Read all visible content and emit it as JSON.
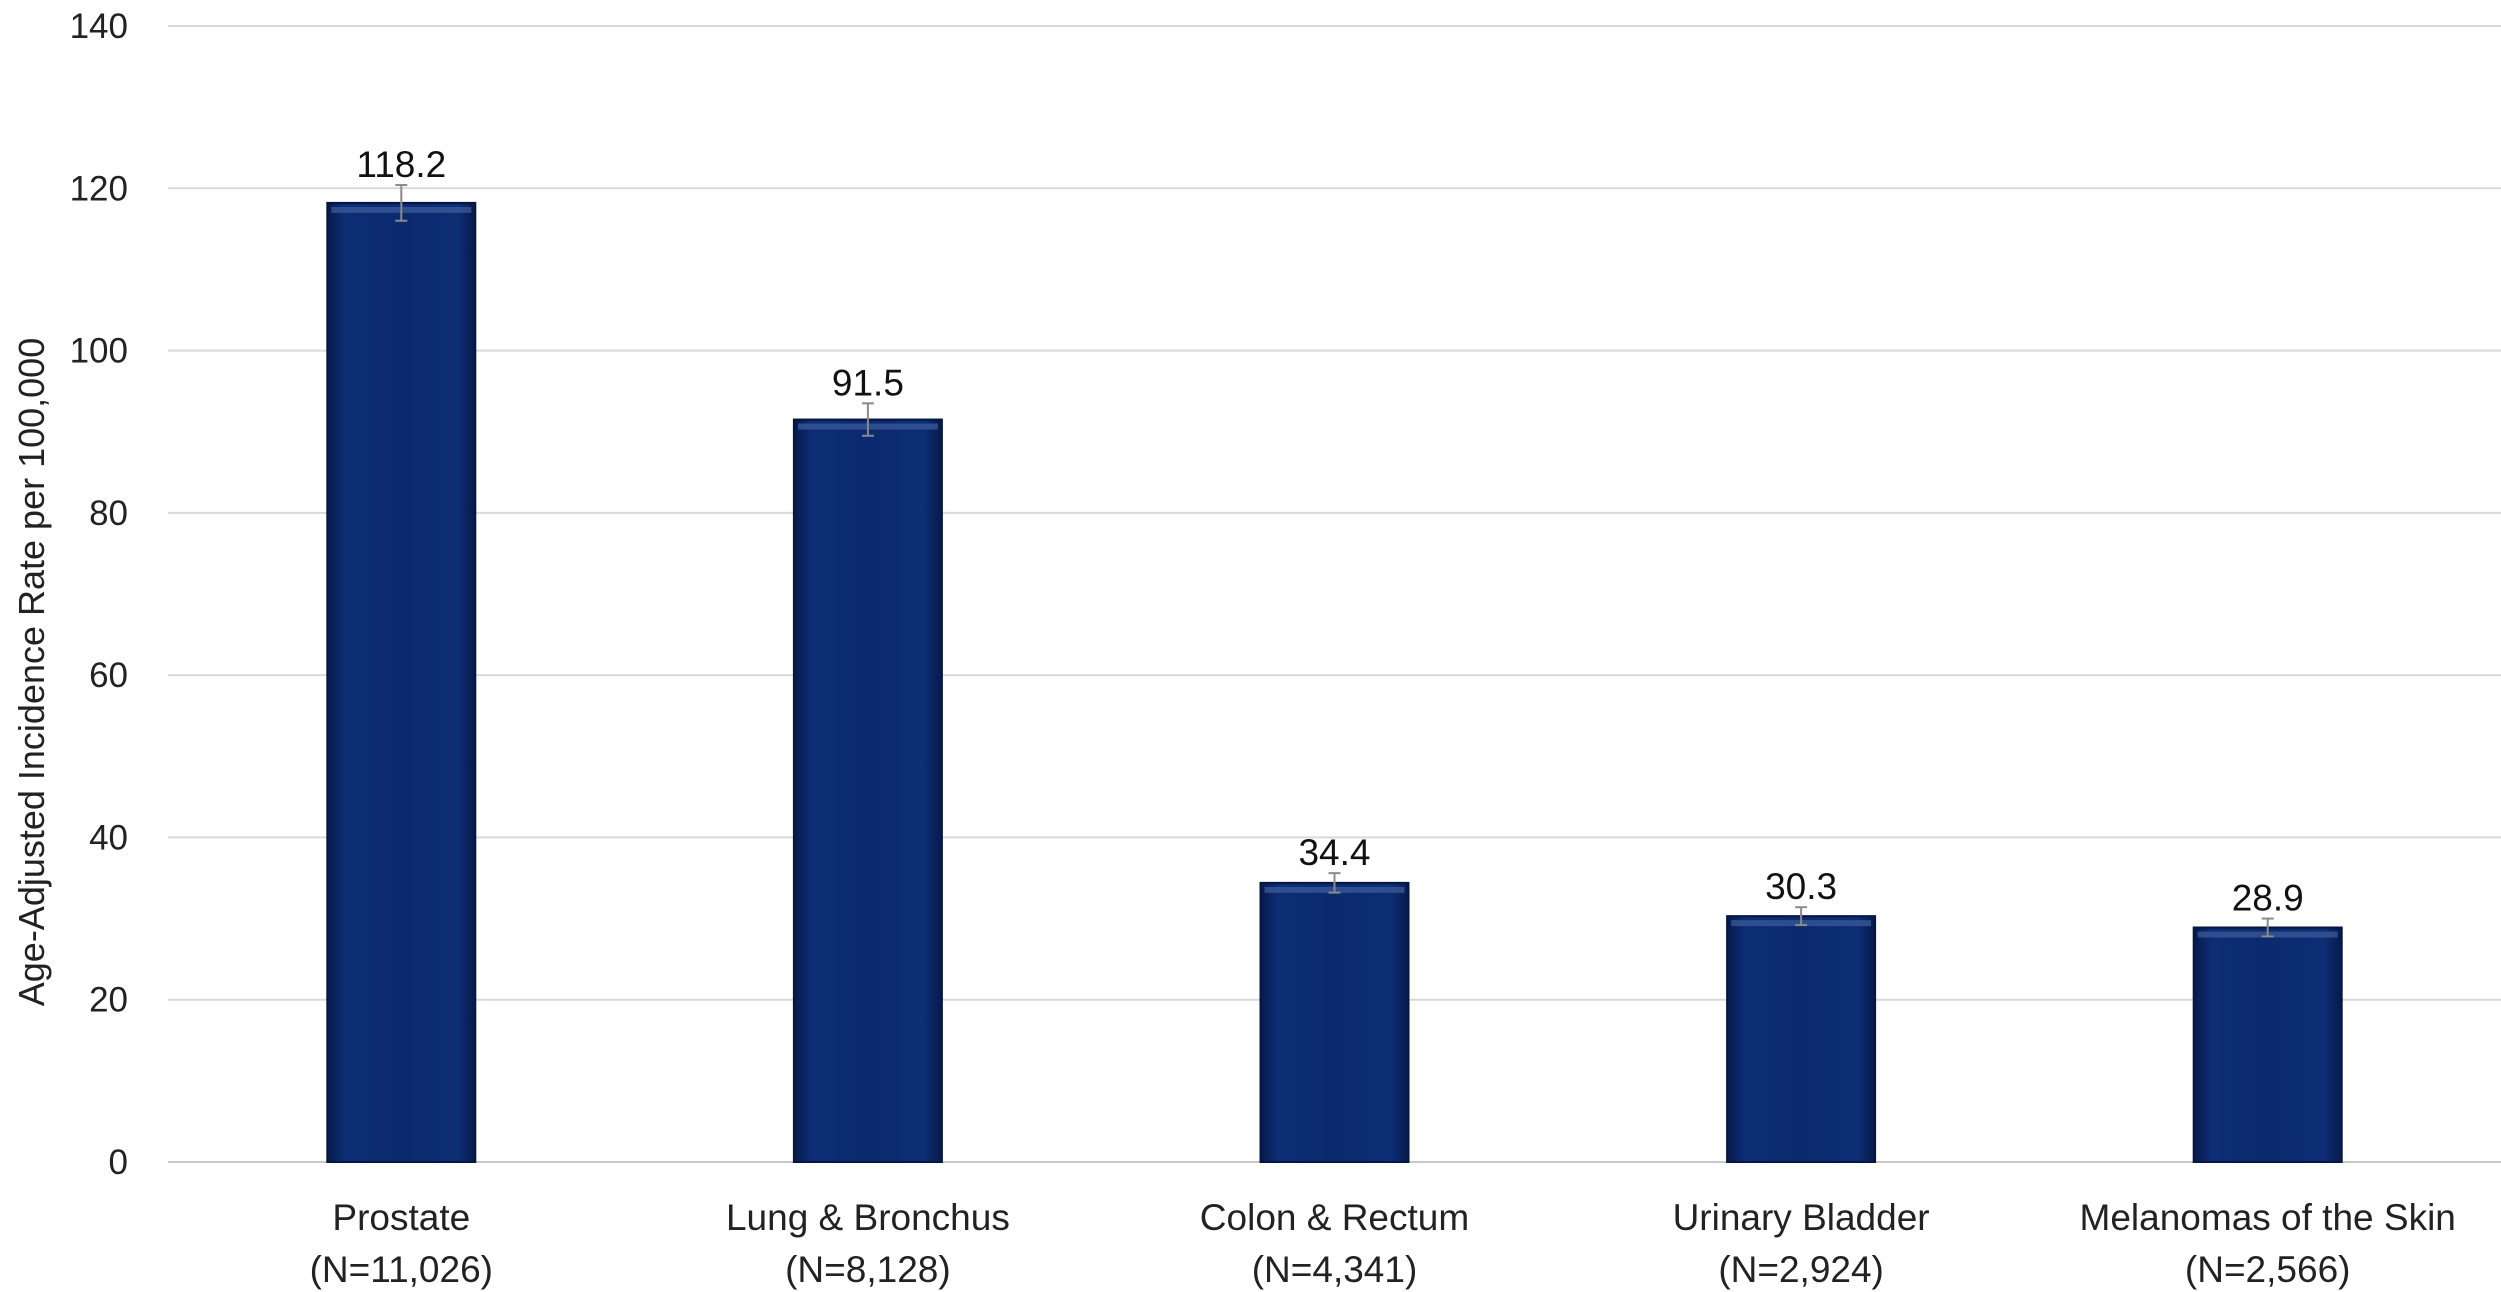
{
  "chart_data": {
    "type": "bar",
    "title": "",
    "xlabel": "",
    "ylabel": "Age-Adjusted Incidence Rate per 100,000",
    "ylim": [
      0,
      140
    ],
    "yticks": [
      0,
      20,
      40,
      60,
      80,
      100,
      120,
      140
    ],
    "grid": true,
    "legend": "none",
    "bar_color": "#0b2a6f",
    "categories": [
      {
        "name": "Prostate",
        "n": "(N=11,026)",
        "value": 118.2,
        "label": "118.2",
        "ci": [
          116.0,
          120.4
        ]
      },
      {
        "name": "Lung & Bronchus",
        "n": "(N=8,128)",
        "value": 91.5,
        "label": "91.5",
        "ci": [
          89.5,
          93.5
        ]
      },
      {
        "name": "Colon & Rectum",
        "n": "(N=4,341)",
        "value": 34.4,
        "label": "34.4",
        "ci": [
          33.2,
          35.6
        ]
      },
      {
        "name": "Urinary Bladder",
        "n": "(N=2,924)",
        "value": 30.3,
        "label": "30.3",
        "ci": [
          29.2,
          31.4
        ]
      },
      {
        "name": "Melanomas of the Skin",
        "n": "(N=2,566)",
        "value": 28.9,
        "label": "28.9",
        "ci": [
          27.8,
          30.0
        ]
      }
    ]
  }
}
